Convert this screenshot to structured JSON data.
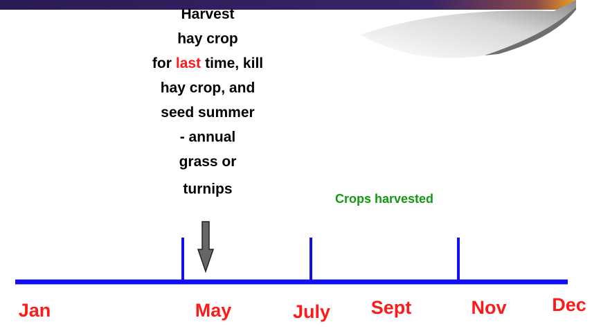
{
  "callout": {
    "lines_before": [
      "Harvest",
      "hay crop"
    ],
    "emphasis_line": {
      "before": "for",
      "highlight": "last",
      "after": "time, kill"
    },
    "lines_after": [
      "hay crop, and",
      "seed summer",
      "- annual",
      "grass or",
      "turnips"
    ]
  },
  "annotation": "Crops harvested",
  "timeline": {
    "months": [
      "Jan",
      "May",
      "July",
      "Sept",
      "Nov",
      "Dec"
    ]
  }
}
